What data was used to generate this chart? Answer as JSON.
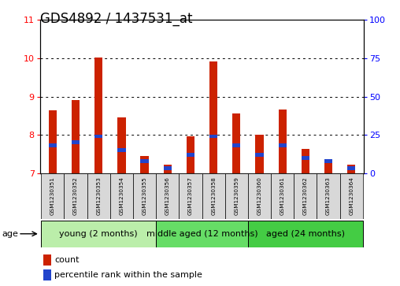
{
  "title": "GDS4892 / 1437531_at",
  "samples": [
    "GSM1230351",
    "GSM1230352",
    "GSM1230353",
    "GSM1230354",
    "GSM1230355",
    "GSM1230356",
    "GSM1230357",
    "GSM1230358",
    "GSM1230359",
    "GSM1230360",
    "GSM1230361",
    "GSM1230362",
    "GSM1230363",
    "GSM1230364"
  ],
  "count_values": [
    8.65,
    8.9,
    10.02,
    8.45,
    7.44,
    7.22,
    7.95,
    9.92,
    8.55,
    8.0,
    8.67,
    7.63,
    7.35,
    7.22
  ],
  "percentile_values": [
    18,
    20,
    24,
    15,
    8,
    3,
    12,
    24,
    18,
    12,
    18,
    10,
    8,
    3
  ],
  "ylim_left": [
    7,
    11
  ],
  "ylim_right": [
    0,
    100
  ],
  "yticks_left": [
    7,
    8,
    9,
    10,
    11
  ],
  "yticks_right": [
    0,
    25,
    50,
    75,
    100
  ],
  "bar_color_red": "#cc2200",
  "bar_color_blue": "#2244cc",
  "bar_width": 0.35,
  "groups": [
    {
      "label": "young (2 months)",
      "start": 0,
      "end": 4,
      "color": "#bbeeaa"
    },
    {
      "label": "middle aged (12 months)",
      "start": 5,
      "end": 8,
      "color": "#66dd66"
    },
    {
      "label": "aged (24 months)",
      "start": 9,
      "end": 13,
      "color": "#44cc44"
    }
  ],
  "age_label": "age",
  "legend_count": "count",
  "legend_percentile": "percentile rank within the sample",
  "bg_color": "#ffffff",
  "sample_box_color": "#d8d8d8",
  "title_fontsize": 12,
  "tick_fontsize": 8,
  "label_fontsize": 6,
  "group_fontsize": 8
}
